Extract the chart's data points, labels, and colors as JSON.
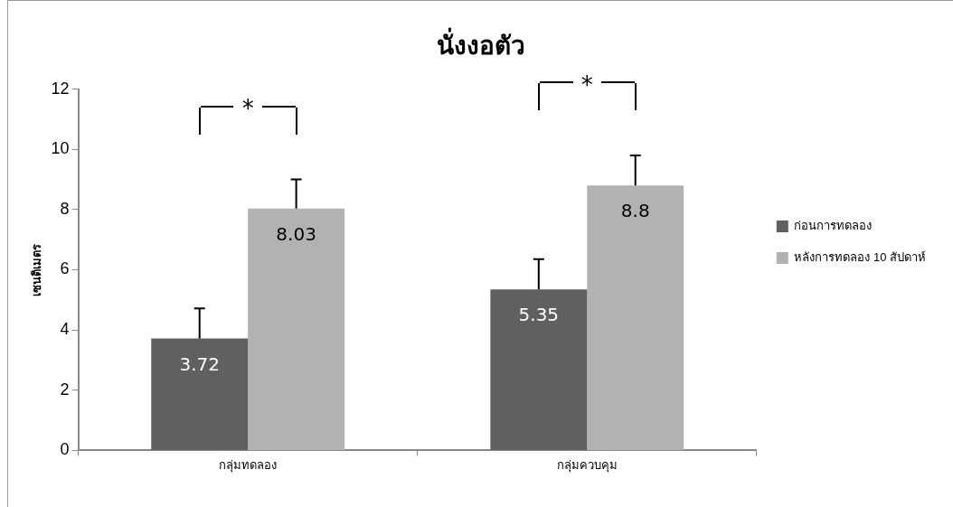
{
  "chart_data": {
    "type": "bar",
    "title": "นั่งงอตัว",
    "ylabel": "เซนติเมตร",
    "categories": [
      "กลุ่มทดลอง",
      "กลุ่มควบคุม"
    ],
    "series": [
      {
        "name": "ก่อนการทดลอง",
        "color": "#606060",
        "values": [
          3.72,
          5.35
        ],
        "errors": [
          [
            3.72,
            4.72
          ],
          [
            5.35,
            6.35
          ]
        ]
      },
      {
        "name": "หลังการทดลอง 10 สัปดาห์",
        "color": "#b2b2b2",
        "values": [
          8.03,
          8.8
        ],
        "errors": [
          [
            8.03,
            9.0
          ],
          [
            8.8,
            9.8
          ]
        ]
      }
    ],
    "ylim": [
      0,
      12
    ],
    "yticks": [
      0,
      2,
      4,
      6,
      8,
      10,
      12
    ],
    "grid": false,
    "legend": "right",
    "data_labels": true,
    "annotations": [
      "*",
      "*"
    ]
  }
}
